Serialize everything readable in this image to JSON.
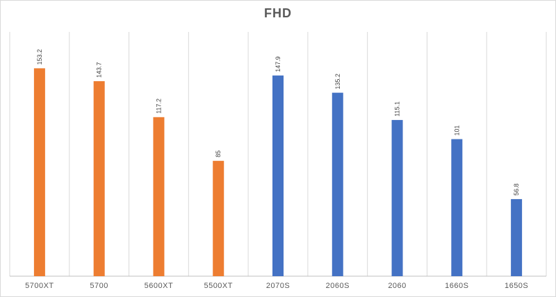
{
  "chart_data": {
    "type": "bar",
    "title": "FHD",
    "categories": [
      "5700XT",
      "5700",
      "5600XT",
      "5500XT",
      "2070S",
      "2060S",
      "2060",
      "1660S",
      "1650S"
    ],
    "values": [
      153.2,
      143.7,
      117.2,
      85,
      147.9,
      135.2,
      115.1,
      101,
      56.8
    ],
    "value_labels": [
      "153.2",
      "143.7",
      "117.2",
      "85",
      "147.9",
      "135.2",
      "115.1",
      "101",
      "56.8"
    ],
    "bar_colors": [
      "#ed7d31",
      "#ed7d31",
      "#ed7d31",
      "#ed7d31",
      "#4472c4",
      "#4472c4",
      "#4472c4",
      "#4472c4",
      "#4472c4"
    ],
    "xlabel": "",
    "ylabel": "",
    "ylim": [
      0,
      180
    ],
    "grid": "vertical category separators",
    "legend": "none"
  }
}
